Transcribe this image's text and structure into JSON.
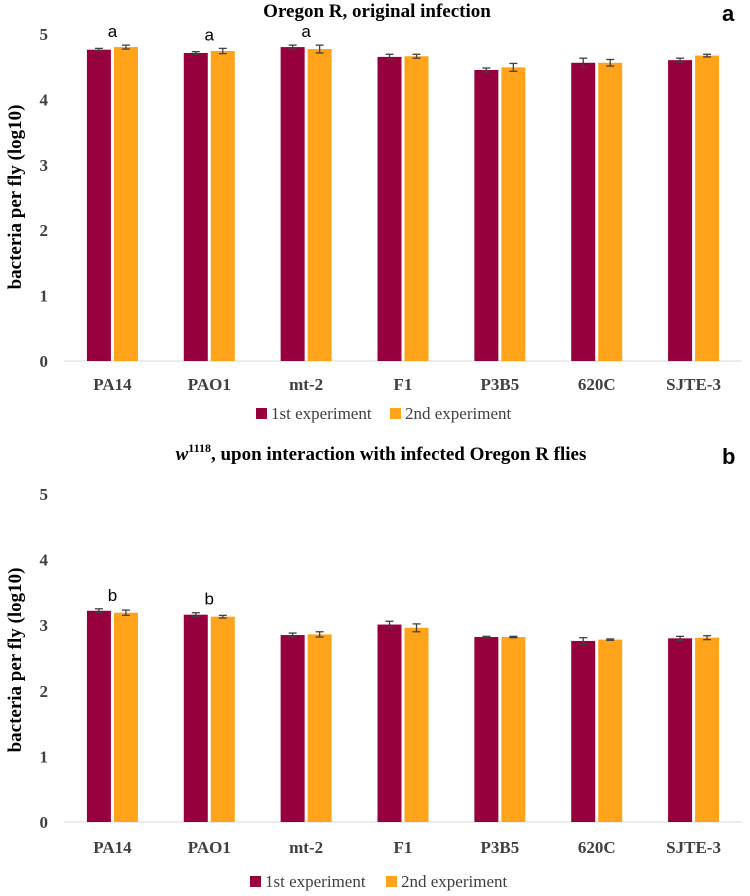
{
  "colors": {
    "series1": "#96003c",
    "series2": "#ffa31a"
  },
  "chart_data": [
    {
      "type": "bar",
      "panel_letter": "a",
      "title": "Oregon R, original infection",
      "title_main": "",
      "title_sup": "",
      "ylabel": "bacteria per fly (log10)",
      "xlabel": "",
      "ylim": [
        0,
        5
      ],
      "yticks": [
        "0",
        "1",
        "2",
        "3",
        "4",
        "5"
      ],
      "categories": [
        "PA14",
        "PAO1",
        "mt-2",
        "F1",
        "P3B5",
        "620C",
        "SJTE-3"
      ],
      "series": [
        {
          "name": "1st experiment",
          "values": [
            4.76,
            4.71,
            4.8,
            4.65,
            4.45,
            4.56,
            4.6
          ],
          "errors": [
            0.02,
            0.02,
            0.03,
            0.04,
            0.03,
            0.07,
            0.03
          ]
        },
        {
          "name": "2nd experiment",
          "values": [
            4.8,
            4.74,
            4.77,
            4.66,
            4.49,
            4.56,
            4.67
          ],
          "errors": [
            0.03,
            0.04,
            0.06,
            0.03,
            0.06,
            0.05,
            0.02
          ]
        }
      ],
      "annotations": [
        {
          "category": "PA14",
          "text": "a"
        },
        {
          "category": "PAO1",
          "text": "a"
        },
        {
          "category": "mt-2",
          "text": "a"
        }
      ],
      "legend_position": "bottom"
    },
    {
      "type": "bar",
      "panel_letter": "b",
      "title": "",
      "title_main": "w",
      "title_sup": "1118",
      "title_rest": ", upon interaction with infected Oregon R flies",
      "ylabel": "bacteria per fly (log10)",
      "xlabel": "",
      "ylim": [
        0,
        5
      ],
      "yticks": [
        "0",
        "1",
        "2",
        "3",
        "4",
        "5"
      ],
      "categories": [
        "PA14",
        "PAO1",
        "mt-2",
        "F1",
        "P3B5",
        "620C",
        "SJTE-3"
      ],
      "series": [
        {
          "name": "1st experiment",
          "values": [
            3.22,
            3.16,
            2.85,
            3.01,
            2.82,
            2.76,
            2.8
          ],
          "errors": [
            0.03,
            0.03,
            0.03,
            0.05,
            0.01,
            0.05,
            0.03
          ]
        },
        {
          "name": "2nd experiment",
          "values": [
            3.19,
            3.13,
            2.86,
            2.96,
            2.82,
            2.78,
            2.81
          ],
          "errors": [
            0.04,
            0.02,
            0.04,
            0.06,
            0.01,
            0.01,
            0.03
          ]
        }
      ],
      "annotations": [
        {
          "category": "PA14",
          "text": "b"
        },
        {
          "category": "PAO1",
          "text": "b"
        }
      ],
      "legend_position": "bottom"
    }
  ]
}
